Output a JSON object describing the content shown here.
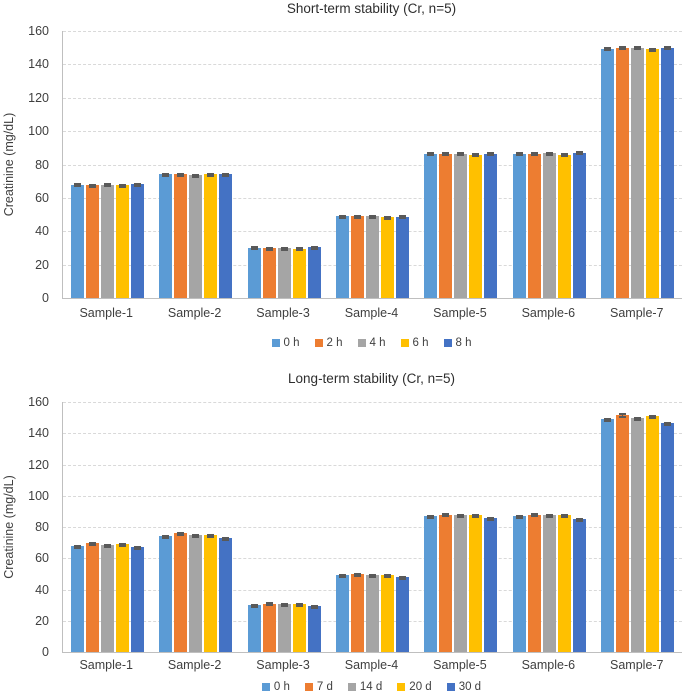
{
  "figure": {
    "background": "#ffffff",
    "text_color": "#3f3f3f",
    "gridline_color": "#d9d9d9",
    "axis_line_color": "#bfbfbf",
    "error_bar_color": "#595959"
  },
  "chart_data": [
    {
      "type": "bar",
      "title": "Short-term stability (Cr, n=5)",
      "xlabel": "",
      "ylabel": "Creatinine (mg/dL)",
      "ylim": [
        0,
        160
      ],
      "ytick_step": 20,
      "grid": true,
      "grid_style": "dashed",
      "legend_position": "bottom",
      "error_bars": true,
      "categories": [
        "Sample-1",
        "Sample-2",
        "Sample-3",
        "Sample-4",
        "Sample-5",
        "Sample-6",
        "Sample-7"
      ],
      "series": [
        {
          "name": "0 h",
          "color": "#5B9BD5",
          "values": [
            68.0,
            74.3,
            30.2,
            49.0,
            86.5,
            86.5,
            149.5
          ],
          "errors": [
            0.7,
            0.6,
            0.8,
            0.6,
            0.7,
            0.7,
            0.8
          ]
        },
        {
          "name": "2 h",
          "color": "#ED7D31",
          "values": [
            67.5,
            74.5,
            30.0,
            49.0,
            86.5,
            86.5,
            150.0
          ],
          "errors": [
            0.6,
            0.7,
            0.7,
            0.6,
            0.8,
            0.7,
            0.8
          ]
        },
        {
          "name": "4 h",
          "color": "#A5A5A5",
          "values": [
            68.0,
            74.0,
            30.0,
            49.0,
            86.5,
            87.0,
            150.0
          ],
          "errors": [
            0.7,
            0.6,
            0.7,
            0.7,
            0.7,
            0.7,
            1.0
          ]
        },
        {
          "name": "6 h",
          "color": "#FFC000",
          "values": [
            67.5,
            74.3,
            29.6,
            48.5,
            86.0,
            86.0,
            149.0
          ],
          "errors": [
            0.6,
            0.6,
            0.8,
            0.6,
            1.0,
            0.8,
            0.8
          ]
        },
        {
          "name": "8 h",
          "color": "#4472C4",
          "values": [
            68.2,
            74.2,
            30.5,
            48.8,
            86.5,
            87.0,
            149.8
          ],
          "errors": [
            0.7,
            0.6,
            0.8,
            0.7,
            0.8,
            0.8,
            1.0
          ]
        }
      ]
    },
    {
      "type": "bar",
      "title": "Long-term stability (Cr, n=5)",
      "xlabel": "",
      "ylabel": "Creatinine (mg/dL)",
      "ylim": [
        0,
        160
      ],
      "ytick_step": 20,
      "grid": true,
      "grid_style": "dashed",
      "legend_position": "bottom",
      "error_bars": true,
      "categories": [
        "Sample-1",
        "Sample-2",
        "Sample-3",
        "Sample-4",
        "Sample-5",
        "Sample-6",
        "Sample-7"
      ],
      "series": [
        {
          "name": "0 h",
          "color": "#5B9BD5",
          "values": [
            68.0,
            74.5,
            30.0,
            49.0,
            87.0,
            87.0,
            149.0
          ],
          "errors": [
            0.7,
            0.7,
            0.8,
            0.7,
            0.8,
            0.8,
            0.8
          ]
        },
        {
          "name": "7 d",
          "color": "#ED7D31",
          "values": [
            69.5,
            76.0,
            31.0,
            50.0,
            88.0,
            88.0,
            151.5
          ],
          "errors": [
            0.9,
            0.8,
            0.8,
            0.8,
            1.0,
            0.9,
            1.5
          ]
        },
        {
          "name": "14 d",
          "color": "#A5A5A5",
          "values": [
            68.5,
            75.0,
            30.5,
            49.5,
            87.5,
            87.5,
            149.5
          ],
          "errors": [
            0.7,
            0.7,
            0.7,
            0.7,
            0.8,
            0.8,
            0.8
          ]
        },
        {
          "name": "20 d",
          "color": "#FFC000",
          "values": [
            69.0,
            75.0,
            30.5,
            49.5,
            87.5,
            87.5,
            151.0
          ],
          "errors": [
            0.8,
            0.7,
            0.7,
            0.7,
            0.8,
            0.8,
            0.8
          ]
        },
        {
          "name": "30 d",
          "color": "#4472C4",
          "values": [
            67.0,
            73.0,
            29.5,
            48.0,
            85.5,
            85.0,
            146.5
          ],
          "errors": [
            0.7,
            0.7,
            0.7,
            0.8,
            0.9,
            0.8,
            1.0
          ]
        }
      ]
    }
  ]
}
